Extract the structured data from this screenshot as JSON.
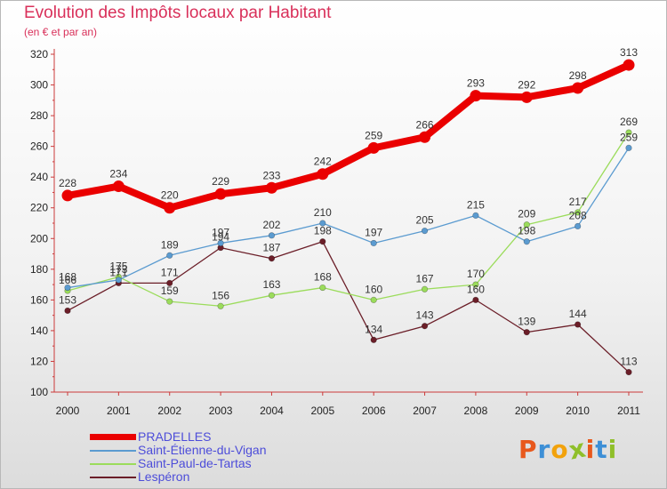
{
  "header": {
    "title": "Evolution des Impôts locaux par Habitant",
    "subtitle": "(en € et par an)"
  },
  "logo": {
    "text": "Proxiti",
    "colors": [
      "#e8581c",
      "#3d8fd6",
      "#f2a20c",
      "#8fbf2a",
      "#e8581c",
      "#3d8fd6",
      "#8fbf2a"
    ]
  },
  "chart_data": {
    "type": "line",
    "x": [
      "2000",
      "2001",
      "2002",
      "2003",
      "2004",
      "2005",
      "2006",
      "2007",
      "2008",
      "2009",
      "2010",
      "2011"
    ],
    "ylim": [
      100,
      320
    ],
    "yticks": [
      100,
      120,
      140,
      160,
      180,
      200,
      220,
      240,
      260,
      280,
      300,
      320
    ],
    "grid": false,
    "legend_position": "bottom-left",
    "series": [
      {
        "name": "PRADELLES",
        "color": "#ea0000",
        "values": [
          228,
          234,
          220,
          229,
          233,
          242,
          259,
          266,
          293,
          292,
          298,
          313
        ]
      },
      {
        "name": "Saint-Étienne-du-Vigan",
        "color": "#5b9bd0",
        "values": [
          168,
          173,
          189,
          197,
          202,
          210,
          197,
          205,
          215,
          198,
          208,
          259
        ]
      },
      {
        "name": "Saint-Paul-de-Tartas",
        "color": "#9bdc5b",
        "values": [
          166,
          175,
          159,
          156,
          163,
          168,
          160,
          167,
          170,
          209,
          217,
          269
        ]
      },
      {
        "name": "Lespéron",
        "color": "#6b1e28",
        "values": [
          153,
          171,
          171,
          194,
          187,
          198,
          134,
          143,
          160,
          139,
          144,
          113
        ]
      }
    ]
  }
}
